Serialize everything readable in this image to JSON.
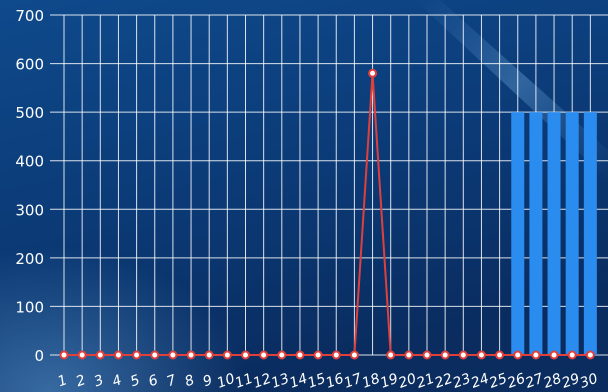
{
  "chart_data": {
    "type": "bar",
    "categories": [
      "1",
      "2",
      "3",
      "4",
      "5",
      "6",
      "7",
      "8",
      "9",
      "10",
      "11",
      "12",
      "13",
      "14",
      "15",
      "16",
      "17",
      "18",
      "19",
      "20",
      "21",
      "22",
      "23",
      "24",
      "25",
      "26",
      "27",
      "28",
      "29",
      "30"
    ],
    "ylim": [
      0,
      700
    ],
    "yticks": [
      0,
      100,
      200,
      300,
      400,
      500,
      600,
      700
    ],
    "grid": true,
    "legend": "none",
    "series": [
      {
        "type": "bar",
        "color": "#2b8cf0",
        "values": [
          0,
          0,
          0,
          0,
          0,
          0,
          0,
          0,
          0,
          0,
          0,
          0,
          0,
          0,
          0,
          0,
          0,
          0,
          0,
          0,
          0,
          0,
          0,
          0,
          0,
          500,
          500,
          500,
          500,
          500
        ]
      },
      {
        "type": "line",
        "color": "#e0403c",
        "values": [
          0,
          0,
          0,
          0,
          0,
          0,
          0,
          0,
          0,
          0,
          0,
          0,
          0,
          0,
          0,
          0,
          0,
          580,
          0,
          0,
          0,
          0,
          0,
          0,
          0,
          0,
          0,
          0,
          0,
          0
        ]
      }
    ]
  },
  "colors": {
    "bg_top": "#0c3f7c",
    "bg_bottom": "#0a2f63",
    "grid": "#ffffff",
    "axis_text": "#ffffff",
    "bar": "#2b8cf0",
    "line": "#e0403c",
    "marker_fill": "#ffffff"
  }
}
